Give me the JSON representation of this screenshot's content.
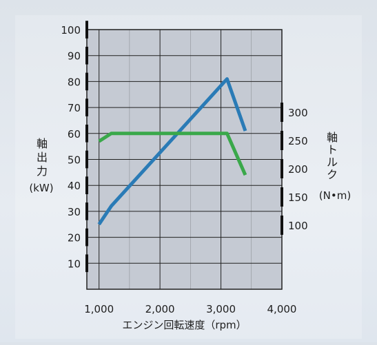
{
  "chart_data": {
    "type": "line",
    "xlabel": "エンジン回転速度（rpm）",
    "x_ticks": [
      "1,000",
      "2,000",
      "3,000",
      "4,000"
    ],
    "xlim": [
      800,
      4000
    ],
    "left_axis": {
      "label_chars": [
        "軸",
        "出",
        "力"
      ],
      "unit": "(kW)",
      "ylim": [
        0,
        100
      ],
      "ticks": [
        "10",
        "20",
        "30",
        "40",
        "50",
        "60",
        "70",
        "80",
        "90",
        "100"
      ]
    },
    "right_axis": {
      "label_chars": [
        "軸",
        "ト",
        "ル",
        "ク"
      ],
      "unit": "(N•m)",
      "ticks": [
        "100",
        "150",
        "200",
        "250",
        "300"
      ]
    },
    "grid": true,
    "plot_background": "#c5cad3",
    "series": [
      {
        "color": "#2a7bb6",
        "axis": "left",
        "x": [
          1000,
          1200,
          3100,
          3400
        ],
        "y": [
          25,
          32,
          81,
          61
        ]
      },
      {
        "color": "#3aa84a",
        "axis": "left",
        "x": [
          1000,
          1200,
          3100,
          3400
        ],
        "y": [
          57,
          60,
          60,
          44
        ]
      }
    ]
  }
}
